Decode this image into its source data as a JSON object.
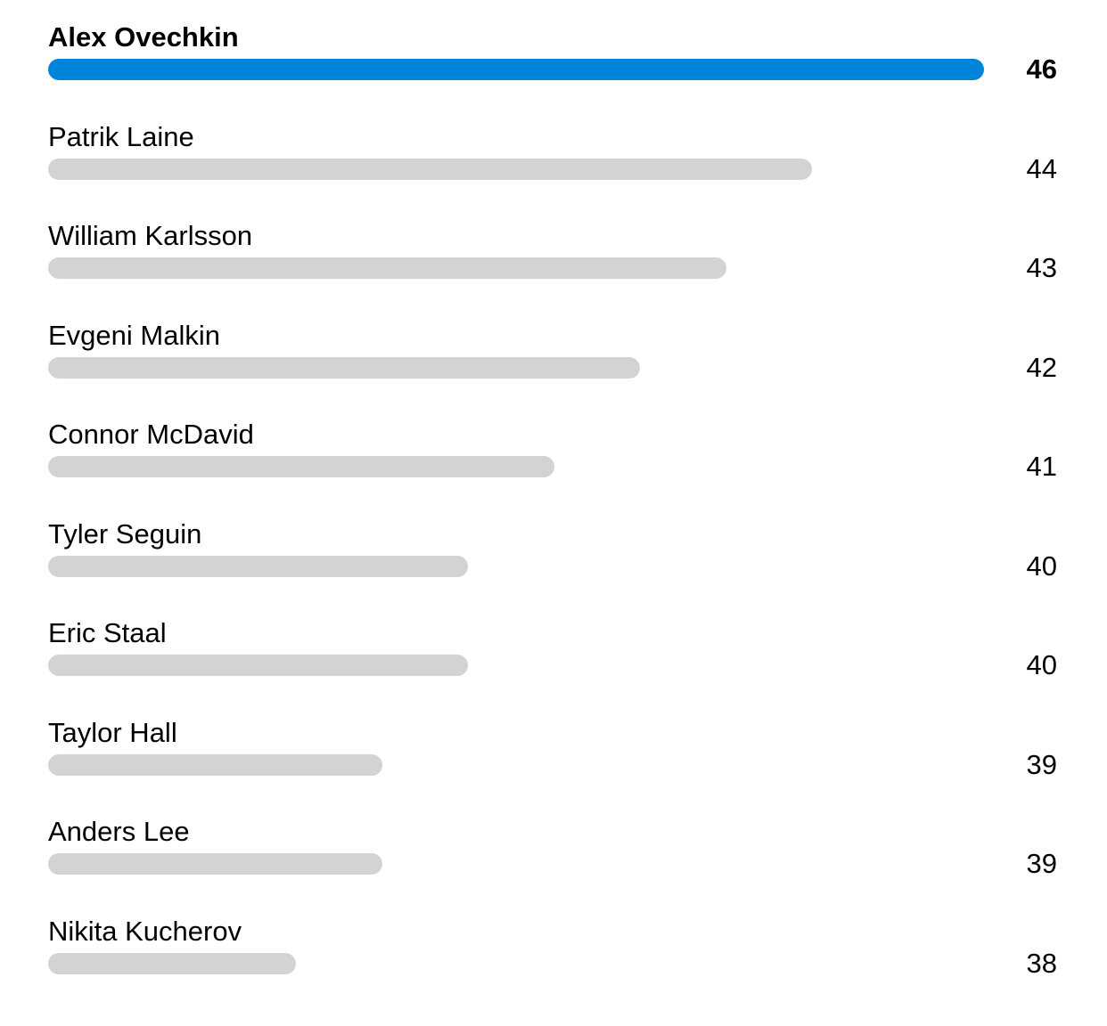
{
  "chart_data": {
    "type": "bar",
    "orientation": "horizontal",
    "categories": [
      "Alex Ovechkin",
      "Patrik Laine",
      "William Karlsson",
      "Evgeni Malkin",
      "Connor McDavid",
      "Tyler Seguin",
      "Eric Staal",
      "Taylor Hall",
      "Anders Lee",
      "Nikita Kucherov"
    ],
    "values": [
      46,
      44,
      43,
      42,
      41,
      40,
      40,
      39,
      39,
      38
    ],
    "highlight_index": 0,
    "colors": {
      "highlight": "#0084DA",
      "default": "#D3D3D3"
    },
    "grid": false,
    "legend": "none"
  }
}
